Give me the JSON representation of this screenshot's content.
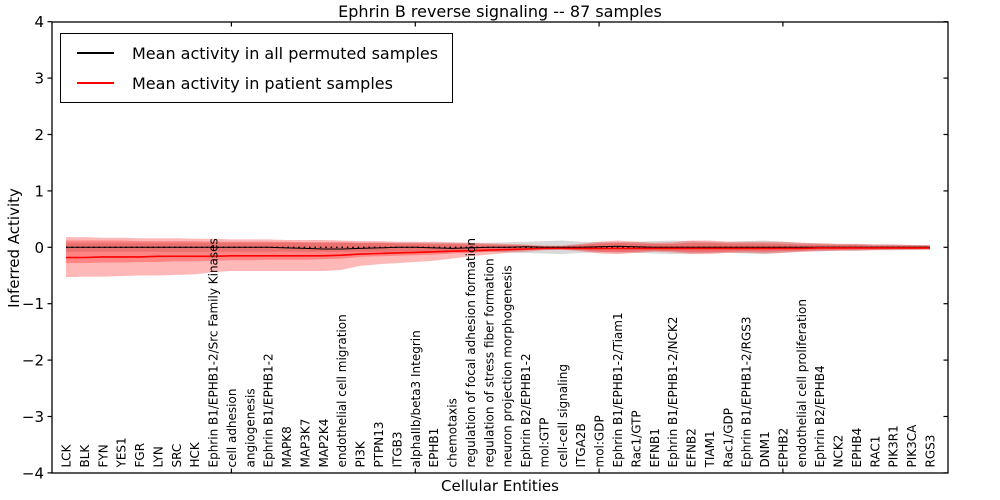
{
  "chart_data": {
    "type": "line",
    "title": "Ephrin B reverse signaling -- 87 samples",
    "xlabel": "Cellular Entities",
    "ylabel": "Inferred Activity",
    "ylim": [
      -4,
      4
    ],
    "grid": false,
    "legend_position": "upper left",
    "legend": [
      {
        "label": "Mean activity in all permuted samples",
        "color": "#000000"
      },
      {
        "label": "Mean activity in patient samples",
        "color": "#ff0000"
      }
    ],
    "yticks": {
      "values": [
        4,
        3,
        2,
        1,
        0,
        -1,
        -2,
        -3,
        -4
      ],
      "labels": [
        "4",
        "3",
        "2",
        "1",
        "0",
        "−1",
        "−2",
        "−3",
        "−4"
      ]
    },
    "xticks_top_indices": [
      9,
      19,
      29,
      39
    ],
    "categories": [
      "LCK",
      "BLK",
      "FYN",
      "YES1",
      "FGR",
      "LYN",
      "SRC",
      "HCK",
      "Ephrin B1/EPHB1-2/Src Family Kinases",
      "cell adhesion",
      "angiogenesis",
      "Ephrin B1/EPHB1-2",
      "MAPK8",
      "MAP3K7",
      "MAP2K4",
      "endothelial cell migration",
      "PI3K",
      "PTPN13",
      "ITGB3",
      "alphaIIb/beta3 Integrin",
      "EPHB1",
      "chemotaxis",
      "regulation of focal adhesion formation",
      "regulation of stress fiber formation",
      "neuron projection morphogenesis",
      "Ephrin B2/EPHB1-2",
      "mol:GTP",
      "cell-cell signaling",
      "ITGA2B",
      "mol:GDP",
      "Ephrin B1/EPHB1-2/Tiam1",
      "Rac1/GTP",
      "EFNB1",
      "Ephrin B1/EPHB1-2/NCK2",
      "EFNB2",
      "TIAM1",
      "Rac1/GDP",
      "Ephrin B1/EPHB1-2/RGS3",
      "DNM1",
      "EPHB2",
      "endothelial cell proliferation",
      "Ephrin B2/EPHB4",
      "NCK2",
      "EPHB4",
      "RAC1",
      "PIK3R1",
      "PIK3CA",
      "RGS3"
    ],
    "series": [
      {
        "name": "Mean activity in all permuted samples",
        "color": "#000000",
        "values": [
          0,
          0,
          0,
          0,
          0,
          0,
          0,
          0,
          0,
          0,
          0,
          0,
          -0.01,
          -0.02,
          -0.03,
          -0.03,
          -0.02,
          -0.01,
          0,
          0,
          -0.01,
          -0.02,
          -0.01,
          0,
          0,
          0.01,
          0,
          0,
          0,
          0.01,
          0.02,
          0.01,
          0,
          0,
          0,
          0,
          0,
          0,
          0,
          0,
          0,
          0,
          0,
          0,
          0,
          0,
          0,
          0
        ]
      },
      {
        "name": "Mean activity in patient samples",
        "color": "#ff0000",
        "values": [
          -0.18,
          -0.18,
          -0.17,
          -0.17,
          -0.17,
          -0.16,
          -0.16,
          -0.16,
          -0.16,
          -0.15,
          -0.15,
          -0.15,
          -0.15,
          -0.15,
          -0.15,
          -0.14,
          -0.12,
          -0.11,
          -0.1,
          -0.09,
          -0.08,
          -0.07,
          -0.06,
          -0.05,
          -0.04,
          -0.03,
          -0.02,
          -0.02,
          -0.02,
          -0.02,
          -0.02,
          -0.02,
          -0.02,
          -0.02,
          -0.02,
          -0.02,
          -0.02,
          -0.02,
          -0.02,
          -0.02,
          -0.02,
          -0.01,
          -0.01,
          -0.01,
          -0.01,
          -0.01,
          -0.01,
          -0.01
        ]
      }
    ],
    "bands": {
      "zero_reference": 0,
      "permuted_range": {
        "hi": [
          0.08,
          0.08,
          0.08,
          0.08,
          0.08,
          0.08,
          0.08,
          0.08,
          0.08,
          0.08,
          0.08,
          0.08,
          0.08,
          0.08,
          0.08,
          0.08,
          0.08,
          0.08,
          0.08,
          0.08,
          0.08,
          0.08,
          0.08,
          0.08,
          0.09,
          0.1,
          0.11,
          0.12,
          0.1,
          0.09,
          0.09,
          0.1,
          0.11,
          0.12,
          0.11,
          0.1,
          0.1,
          0.11,
          0.12,
          0.1,
          0.08,
          0.07,
          0.06,
          0.06,
          0.05,
          0.05,
          0.04,
          0.04
        ],
        "lo": [
          -0.08,
          -0.08,
          -0.08,
          -0.08,
          -0.08,
          -0.08,
          -0.08,
          -0.08,
          -0.08,
          -0.08,
          -0.08,
          -0.08,
          -0.08,
          -0.08,
          -0.08,
          -0.08,
          -0.08,
          -0.08,
          -0.08,
          -0.08,
          -0.08,
          -0.08,
          -0.08,
          -0.08,
          -0.09,
          -0.1,
          -0.11,
          -0.12,
          -0.1,
          -0.09,
          -0.09,
          -0.1,
          -0.11,
          -0.12,
          -0.11,
          -0.1,
          -0.1,
          -0.11,
          -0.12,
          -0.1,
          -0.08,
          -0.07,
          -0.06,
          -0.06,
          -0.05,
          -0.05,
          -0.04,
          -0.04
        ]
      },
      "patient_outer": {
        "hi": [
          0.18,
          0.18,
          0.17,
          0.17,
          0.16,
          0.16,
          0.16,
          0.15,
          0.15,
          0.14,
          0.14,
          0.14,
          0.13,
          0.13,
          0.13,
          0.12,
          0.11,
          0.11,
          0.1,
          0.1,
          0.1,
          0.09,
          0.08,
          0.07,
          0.06,
          0.05,
          0.03,
          0.03,
          0.06,
          0.1,
          0.12,
          0.1,
          0.08,
          0.09,
          0.12,
          0.12,
          0.1,
          0.1,
          0.1,
          0.1,
          0.08,
          0.07,
          0.06,
          0.06,
          0.05,
          0.05,
          0.04,
          0.04
        ],
        "lo": [
          -0.53,
          -0.52,
          -0.52,
          -0.51,
          -0.5,
          -0.5,
          -0.49,
          -0.48,
          -0.44,
          -0.42,
          -0.42,
          -0.42,
          -0.42,
          -0.42,
          -0.42,
          -0.4,
          -0.33,
          -0.3,
          -0.28,
          -0.26,
          -0.24,
          -0.2,
          -0.16,
          -0.13,
          -0.1,
          -0.08,
          -0.05,
          -0.04,
          -0.07,
          -0.11,
          -0.12,
          -0.1,
          -0.08,
          -0.09,
          -0.12,
          -0.12,
          -0.1,
          -0.1,
          -0.11,
          -0.1,
          -0.08,
          -0.07,
          -0.06,
          -0.06,
          -0.05,
          -0.05,
          -0.05,
          -0.04
        ]
      },
      "patient_inner": {
        "hi": [
          0.12,
          0.12,
          0.12,
          0.12,
          0.11,
          0.11,
          0.11,
          0.11,
          0.1,
          0.1,
          0.1,
          0.1,
          0.1,
          0.09,
          0.09,
          0.09,
          0.08,
          0.08,
          0.07,
          0.07,
          0.06,
          0.06,
          0.05,
          0.05,
          0.04,
          0.03,
          0.02,
          0.02,
          0.04,
          0.07,
          0.08,
          0.07,
          0.06,
          0.06,
          0.08,
          0.08,
          0.07,
          0.07,
          0.07,
          0.06,
          0.05,
          0.05,
          0.04,
          0.04,
          0.03,
          0.03,
          0.03,
          0.02
        ],
        "lo": [
          -0.28,
          -0.28,
          -0.27,
          -0.27,
          -0.26,
          -0.26,
          -0.25,
          -0.25,
          -0.24,
          -0.23,
          -0.23,
          -0.22,
          -0.22,
          -0.22,
          -0.21,
          -0.2,
          -0.17,
          -0.16,
          -0.15,
          -0.14,
          -0.13,
          -0.11,
          -0.1,
          -0.08,
          -0.07,
          -0.05,
          -0.03,
          -0.03,
          -0.05,
          -0.08,
          -0.09,
          -0.08,
          -0.06,
          -0.07,
          -0.09,
          -0.09,
          -0.08,
          -0.07,
          -0.08,
          -0.07,
          -0.06,
          -0.05,
          -0.05,
          -0.04,
          -0.04,
          -0.03,
          -0.03,
          -0.03
        ]
      }
    },
    "colors": {
      "permuted_line": "#000000",
      "patient_line": "#ff0000",
      "patient_band": "#ff0000",
      "permuted_band": "#aaaaaa"
    }
  }
}
